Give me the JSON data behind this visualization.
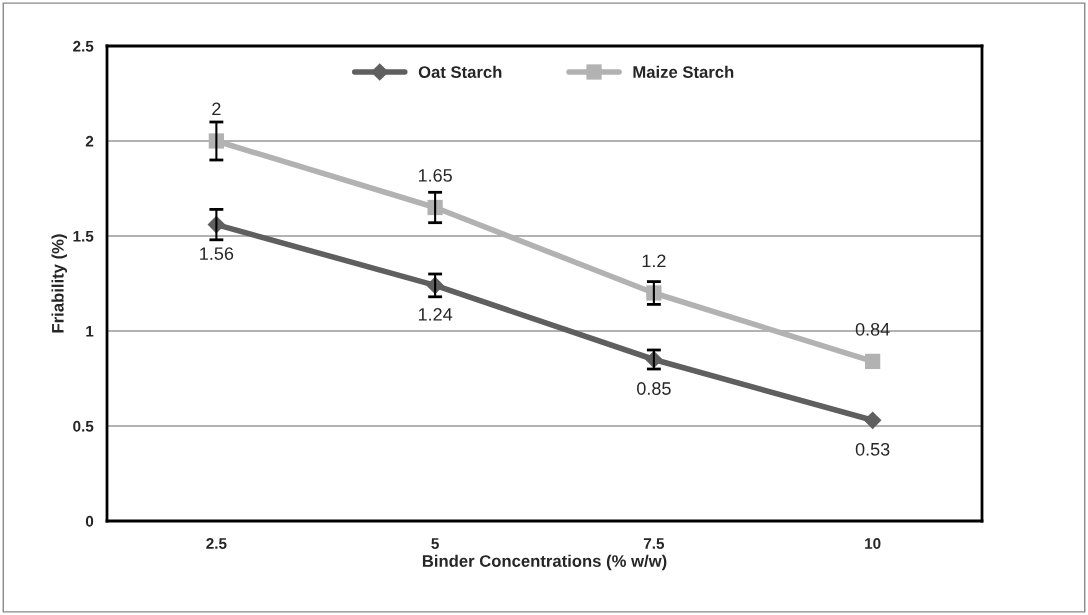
{
  "chart_data": {
    "type": "line",
    "xlabel": "Binder Concentrations (% w/w)",
    "ylabel": "Friability (%)",
    "categories": [
      "2.5",
      "5",
      "7.5",
      "10"
    ],
    "series": [
      {
        "name": "Oat Starch",
        "color": "#5f5f5f",
        "marker": "diamond",
        "values": [
          1.56,
          1.24,
          0.85,
          0.53
        ],
        "errors": [
          0.08,
          0.06,
          0.05,
          null
        ]
      },
      {
        "name": "Maize Starch",
        "color": "#b2b2b2",
        "marker": "square",
        "values": [
          2,
          1.65,
          1.2,
          0.84
        ],
        "errors": [
          0.1,
          0.08,
          0.06,
          null
        ]
      }
    ],
    "ylim": [
      0,
      2.5
    ],
    "yticks": [
      0,
      0.5,
      1,
      1.5,
      2,
      2.5
    ],
    "grid": "y",
    "legend": "top",
    "data_labels": true
  }
}
